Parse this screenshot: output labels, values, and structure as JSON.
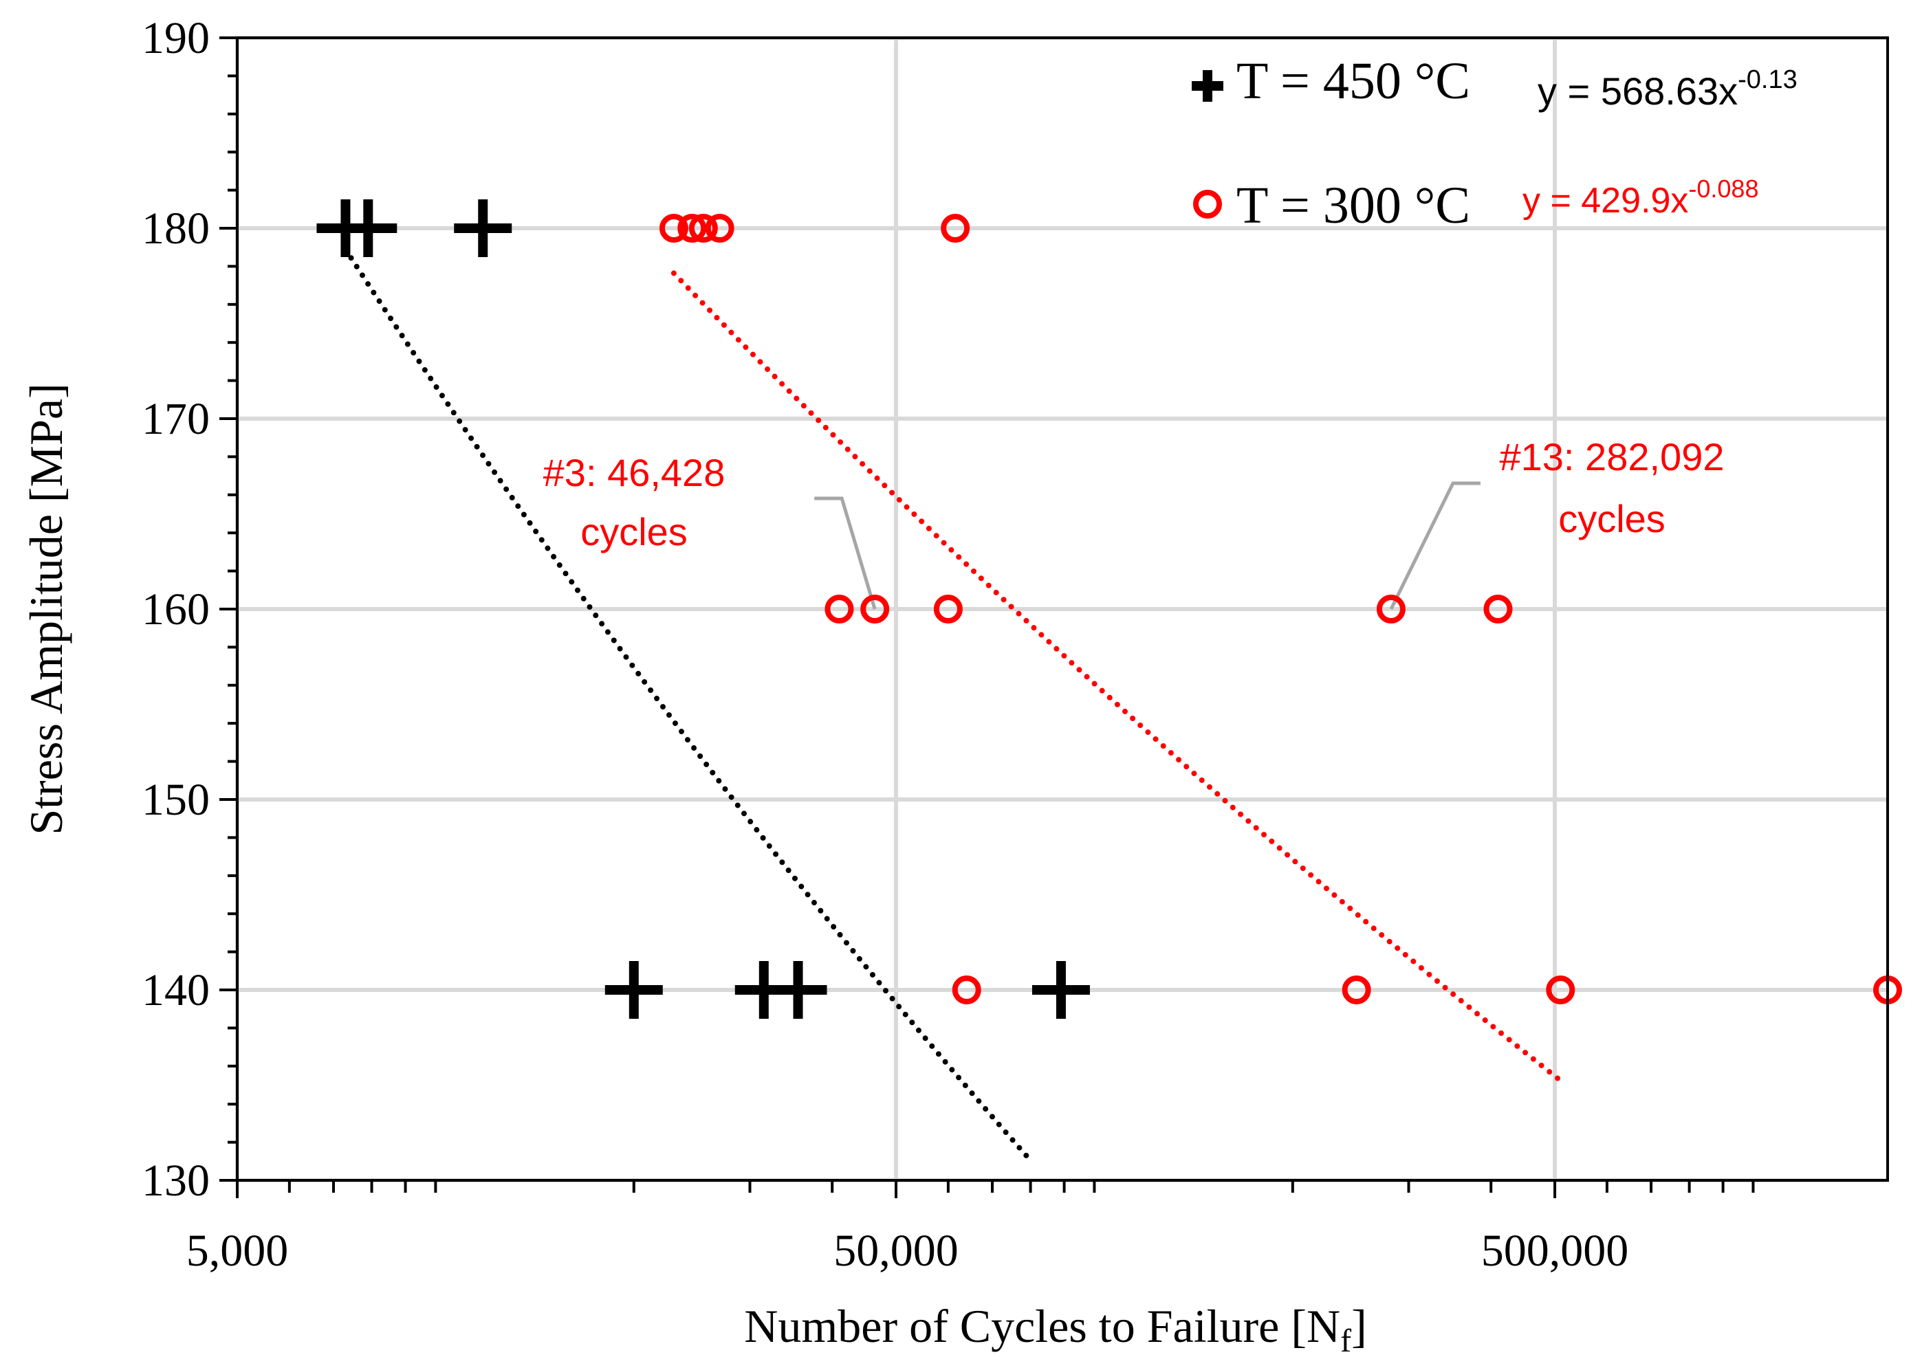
{
  "chart_data": {
    "type": "scatter",
    "xscale": "log",
    "xlim": [
      5000,
      1600000
    ],
    "ylim": [
      130,
      190
    ],
    "xlabel_main": "Number of Cycles to Failure [N",
    "xlabel_sub": "f",
    "xlabel_close": "]",
    "ylabel": "Stress Amplitude [MPa]",
    "x_ticks": [
      {
        "value": 5000,
        "label": "5,000"
      },
      {
        "value": 50000,
        "label": "50,000"
      },
      {
        "value": 500000,
        "label": "500,000"
      }
    ],
    "y_ticks": [
      {
        "value": 130,
        "label": "130"
      },
      {
        "value": 140,
        "label": "140"
      },
      {
        "value": 150,
        "label": "150"
      },
      {
        "value": 160,
        "label": "160"
      },
      {
        "value": 170,
        "label": "170"
      },
      {
        "value": 180,
        "label": "180"
      },
      {
        "value": 190,
        "label": "190"
      }
    ],
    "grid": true,
    "series": [
      {
        "name": "T = 450 °C",
        "marker": "plus",
        "color": "#000000",
        "points": [
          {
            "x": 7300,
            "y": 180
          },
          {
            "x": 7900,
            "y": 180
          },
          {
            "x": 11800,
            "y": 180
          },
          {
            "x": 20000,
            "y": 140
          },
          {
            "x": 31500,
            "y": 140
          },
          {
            "x": 35500,
            "y": 140
          },
          {
            "x": 89000,
            "y": 140
          }
        ],
        "trendline": {
          "label": "y = 568.63x",
          "exponent": "-0.13",
          "a": 568.63,
          "b": -0.13,
          "x_range": [
            7300,
            80000
          ]
        }
      },
      {
        "name": "T = 300 °C",
        "marker": "circle",
        "color": "#ff0000",
        "points": [
          {
            "x": 23000,
            "y": 180
          },
          {
            "x": 24500,
            "y": 180
          },
          {
            "x": 25500,
            "y": 180
          },
          {
            "x": 27000,
            "y": 180
          },
          {
            "x": 61500,
            "y": 180
          },
          {
            "x": 41000,
            "y": 160
          },
          {
            "x": 46428,
            "y": 160
          },
          {
            "x": 60000,
            "y": 160
          },
          {
            "x": 282092,
            "y": 160
          },
          {
            "x": 410000,
            "y": 160
          },
          {
            "x": 64000,
            "y": 140
          },
          {
            "x": 250000,
            "y": 140
          },
          {
            "x": 510000,
            "y": 140
          },
          {
            "x": 1600000,
            "y": 140
          }
        ],
        "trendline": {
          "label": "y = 429.9x",
          "exponent": "-0.088",
          "a": 429.9,
          "b": -0.088,
          "x_range": [
            23000,
            510000
          ]
        }
      }
    ],
    "annotations": [
      {
        "line1": "#3: 46,428",
        "line2": "cycles",
        "target_x": 46428,
        "target_y": 160
      },
      {
        "line1": "#13: 282,092",
        "line2": "cycles",
        "target_x": 282092,
        "target_y": 160
      }
    ]
  }
}
